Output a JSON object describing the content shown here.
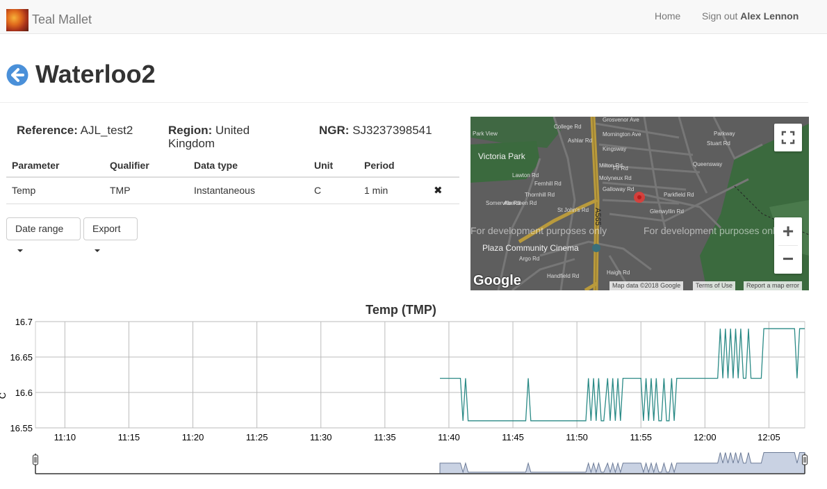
{
  "nav": {
    "brand": "Teal Mallet",
    "home": "Home",
    "signout_prefix": "Sign out",
    "user": "Alex Lennon"
  },
  "page": {
    "title": "Waterloo2"
  },
  "meta": {
    "reference_label": "Reference:",
    "reference": "AJL_test2",
    "region_label": "Region:",
    "region_line1": "United",
    "region_line2": "Kingdom",
    "ngr_label": "NGR:",
    "ngr": "SJ3237398541"
  },
  "table": {
    "headers": [
      "Parameter",
      "Qualifier",
      "Data type",
      "Unit",
      "Period"
    ],
    "rows": [
      {
        "parameter": "Temp",
        "qualifier": "TMP",
        "data_type": "Instantaneous",
        "unit": "C",
        "period": "1 min",
        "delete_icon": "close-icon"
      }
    ]
  },
  "buttons": {
    "date_range": "Date range",
    "export": "Export"
  },
  "map": {
    "watermark": "For development purposes only",
    "labels": [
      "Victoria Park",
      "Plaza Community Cinema",
      "A565"
    ],
    "roads": [
      "Grosvenor Ave",
      "Mornington Ave",
      "Kingsway",
      "Milton Rd",
      "Molyneux Rd",
      "Fir Rd",
      "Galloway Rd",
      "Parkfield Rd",
      "Glenwyllin Rd",
      "College Rd",
      "Lawton Rd",
      "Ashlar Rd",
      "Fernhill Rd",
      "Thornhill Rd",
      "Aberdeen Rd",
      "St John's Rd",
      "Argo Rd",
      "Handfield Rd",
      "Haigh Rd",
      "Park View",
      "Stuart Rd",
      "Queensway",
      "Parkway",
      "Somerville Rd"
    ],
    "footer": {
      "data": "Map data ©2018 Google",
      "terms": "Terms of Use",
      "report": "Report a map error"
    },
    "logo": "Google",
    "controls": {
      "fullscreen": "fullscreen-icon",
      "zoom_in": "+",
      "zoom_out": "−"
    }
  },
  "chart_data": {
    "type": "line",
    "title": "Temp (TMP)",
    "ylabel": "C",
    "ylim": [
      16.55,
      16.7
    ],
    "yticks": [
      "16.7",
      "16.65",
      "16.6",
      "16.55"
    ],
    "xticks": [
      "11:10",
      "11:15",
      "11:20",
      "11:25",
      "11:30",
      "11:35",
      "11:40",
      "11:45",
      "11:50",
      "11:55",
      "12:00",
      "12:05"
    ],
    "x_unit": "minutes after 11:00",
    "xlim": [
      7.7,
      67.8
    ],
    "series": [
      {
        "color": "#2a8a86",
        "x": [
          39.3,
          40.9,
          41.1,
          41.3,
          41.5,
          41.7,
          46.0,
          46.2,
          46.4,
          50.7,
          50.9,
          51.1,
          51.3,
          51.5,
          51.7,
          51.9,
          52.1,
          52.4,
          52.6,
          52.8,
          53.0,
          53.2,
          53.4,
          53.6,
          55.0,
          55.2,
          55.4,
          55.6,
          55.8,
          56.0,
          56.2,
          56.4,
          56.6,
          56.8,
          57.0,
          57.2,
          57.4,
          57.6,
          57.8,
          61.0,
          61.2,
          61.4,
          61.6,
          61.8,
          62.0,
          62.2,
          62.4,
          62.6,
          62.8,
          63.0,
          63.2,
          63.4,
          63.6,
          64.4,
          64.6,
          64.8,
          65.0,
          65.2,
          65.4,
          66.0,
          67.0,
          67.2,
          67.4,
          67.8
        ],
        "y": [
          16.62,
          16.62,
          16.56,
          16.62,
          16.56,
          16.56,
          16.56,
          16.62,
          16.56,
          16.56,
          16.62,
          16.56,
          16.62,
          16.56,
          16.62,
          16.56,
          16.56,
          16.62,
          16.56,
          16.62,
          16.56,
          16.62,
          16.56,
          16.62,
          16.62,
          16.56,
          16.62,
          16.56,
          16.62,
          16.56,
          16.62,
          16.56,
          16.56,
          16.62,
          16.56,
          16.56,
          16.62,
          16.56,
          16.62,
          16.62,
          16.69,
          16.62,
          16.69,
          16.62,
          16.69,
          16.62,
          16.69,
          16.62,
          16.69,
          16.62,
          16.62,
          16.69,
          16.62,
          16.62,
          16.69,
          16.69,
          16.69,
          16.69,
          16.69,
          16.69,
          16.69,
          16.62,
          16.69,
          16.69
        ]
      }
    ],
    "grid": true,
    "legend": "none",
    "range_selector": true
  }
}
